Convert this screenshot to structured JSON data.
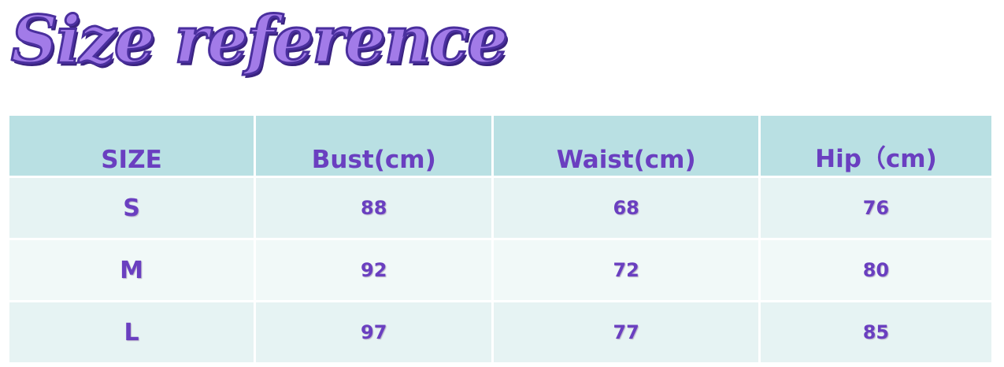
{
  "title": "Size reference",
  "colors": {
    "header_bg": "#b9e0e3",
    "row_bg": "#e6f3f3",
    "row_alt_bg": "#f1f9f8",
    "text": "#6a3fc0"
  },
  "table": {
    "headers": [
      "SIZE",
      "Bust(cm)",
      "Waist(cm)",
      "Hip（cm)"
    ],
    "rows": [
      [
        "S",
        "88",
        "68",
        "76"
      ],
      [
        "M",
        "92",
        "72",
        "80"
      ],
      [
        "L",
        "97",
        "77",
        "85"
      ]
    ]
  }
}
